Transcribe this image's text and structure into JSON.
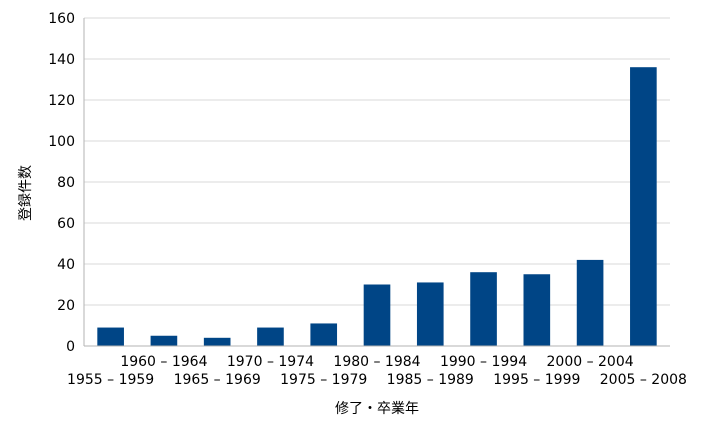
{
  "chart_data": {
    "type": "bar",
    "categories": [
      "1955 – 1959",
      "1960 – 1964",
      "1965 – 1969",
      "1970 – 1974",
      "1975 – 1979",
      "1980 – 1984",
      "1985 – 1989",
      "1990 – 1994",
      "1995 – 1999",
      "2000 – 2004",
      "2005 – 2008"
    ],
    "values": [
      9,
      5,
      4,
      9,
      11,
      30,
      31,
      36,
      35,
      42,
      136
    ],
    "title": "",
    "xlabel": "修了・卒業年",
    "ylabel": "登録件数",
    "ylim": [
      0,
      160
    ],
    "yticks": [
      0,
      20,
      40,
      60,
      80,
      100,
      120,
      140,
      160
    ],
    "grid": true,
    "legend": "none",
    "colors": {
      "bar": "#004586",
      "grid": "#d9d9d9",
      "axis": "#b3b3b3"
    }
  }
}
